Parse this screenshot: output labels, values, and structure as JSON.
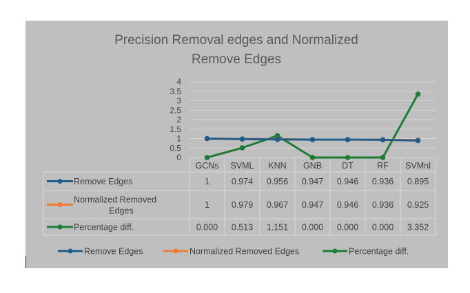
{
  "chart_data": {
    "type": "line",
    "title_lines": [
      "Precision Removal edges and Normalized",
      "Remove Edges"
    ],
    "categories": [
      "GCNs",
      "SVML",
      "KNN",
      "GNB",
      "DT",
      "RF",
      "SVMnl"
    ],
    "y_ticks": [
      "0",
      "0.5",
      "1",
      "1.5",
      "2",
      "2.5",
      "3",
      "3.5",
      "4"
    ],
    "ylim": [
      0,
      4
    ],
    "grid": true,
    "legend_position": "bottom",
    "data_table": true,
    "series": [
      {
        "name": "Remove Edges",
        "table_label_lines": [
          "Remove Edges"
        ],
        "color": "#1f5c8a",
        "values": [
          1,
          0.974,
          0.956,
          0.947,
          0.946,
          0.936,
          0.895
        ],
        "table_values": [
          "1",
          "0.974",
          "0.956",
          "0.947",
          "0.946",
          "0.936",
          "0.895"
        ]
      },
      {
        "name": "Normalized Removed Edges",
        "table_label_lines": [
          "Normalized Removed",
          "Edges"
        ],
        "color": "#ed7d31",
        "values": [
          1,
          0.979,
          0.967,
          0.947,
          0.946,
          0.936,
          0.925
        ],
        "table_values": [
          "1",
          "0.979",
          "0.967",
          "0.947",
          "0.946",
          "0.936",
          "0.925"
        ]
      },
      {
        "name": "Percentage diff.",
        "table_label_lines": [
          "Percentage diff."
        ],
        "color": "#1e7b35",
        "values": [
          0.0,
          0.513,
          1.151,
          0.0,
          0.0,
          0.0,
          3.352
        ],
        "table_values": [
          "0.000",
          "0.513",
          "1.151",
          "0.000",
          "0.000",
          "0.000",
          "3.352"
        ]
      }
    ]
  }
}
